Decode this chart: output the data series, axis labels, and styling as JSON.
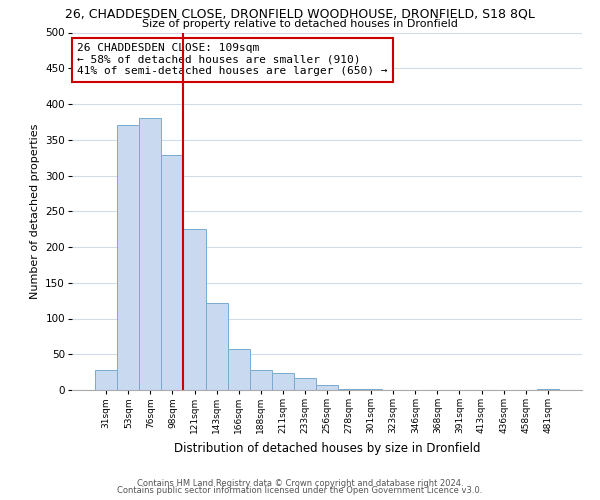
{
  "title_line1": "26, CHADDESDEN CLOSE, DRONFIELD WOODHOUSE, DRONFIELD, S18 8QL",
  "title_line2": "Size of property relative to detached houses in Dronfield",
  "xlabel": "Distribution of detached houses by size in Dronfield",
  "ylabel": "Number of detached properties",
  "bar_labels": [
    "31sqm",
    "53sqm",
    "76sqm",
    "98sqm",
    "121sqm",
    "143sqm",
    "166sqm",
    "188sqm",
    "211sqm",
    "233sqm",
    "256sqm",
    "278sqm",
    "301sqm",
    "323sqm",
    "346sqm",
    "368sqm",
    "391sqm",
    "413sqm",
    "436sqm",
    "458sqm",
    "481sqm"
  ],
  "bar_values": [
    28,
    370,
    380,
    328,
    225,
    121,
    58,
    28,
    24,
    17,
    7,
    2,
    1,
    0,
    0,
    0,
    0,
    0,
    0,
    0,
    2
  ],
  "bar_color": "#c8d9f0",
  "bar_edge_color": "#7aaad0",
  "vline_x": 3.5,
  "vline_color": "#cc0000",
  "annotation_text": "26 CHADDESDEN CLOSE: 109sqm\n← 58% of detached houses are smaller (910)\n41% of semi-detached houses are larger (650) →",
  "annotation_box_color": "#ffffff",
  "annotation_box_edge": "#cc0000",
  "ylim": [
    0,
    500
  ],
  "yticks": [
    0,
    50,
    100,
    150,
    200,
    250,
    300,
    350,
    400,
    450,
    500
  ],
  "footer_line1": "Contains HM Land Registry data © Crown copyright and database right 2024.",
  "footer_line2": "Contains public sector information licensed under the Open Government Licence v3.0.",
  "bg_color": "#ffffff",
  "grid_color": "#d0dce8"
}
